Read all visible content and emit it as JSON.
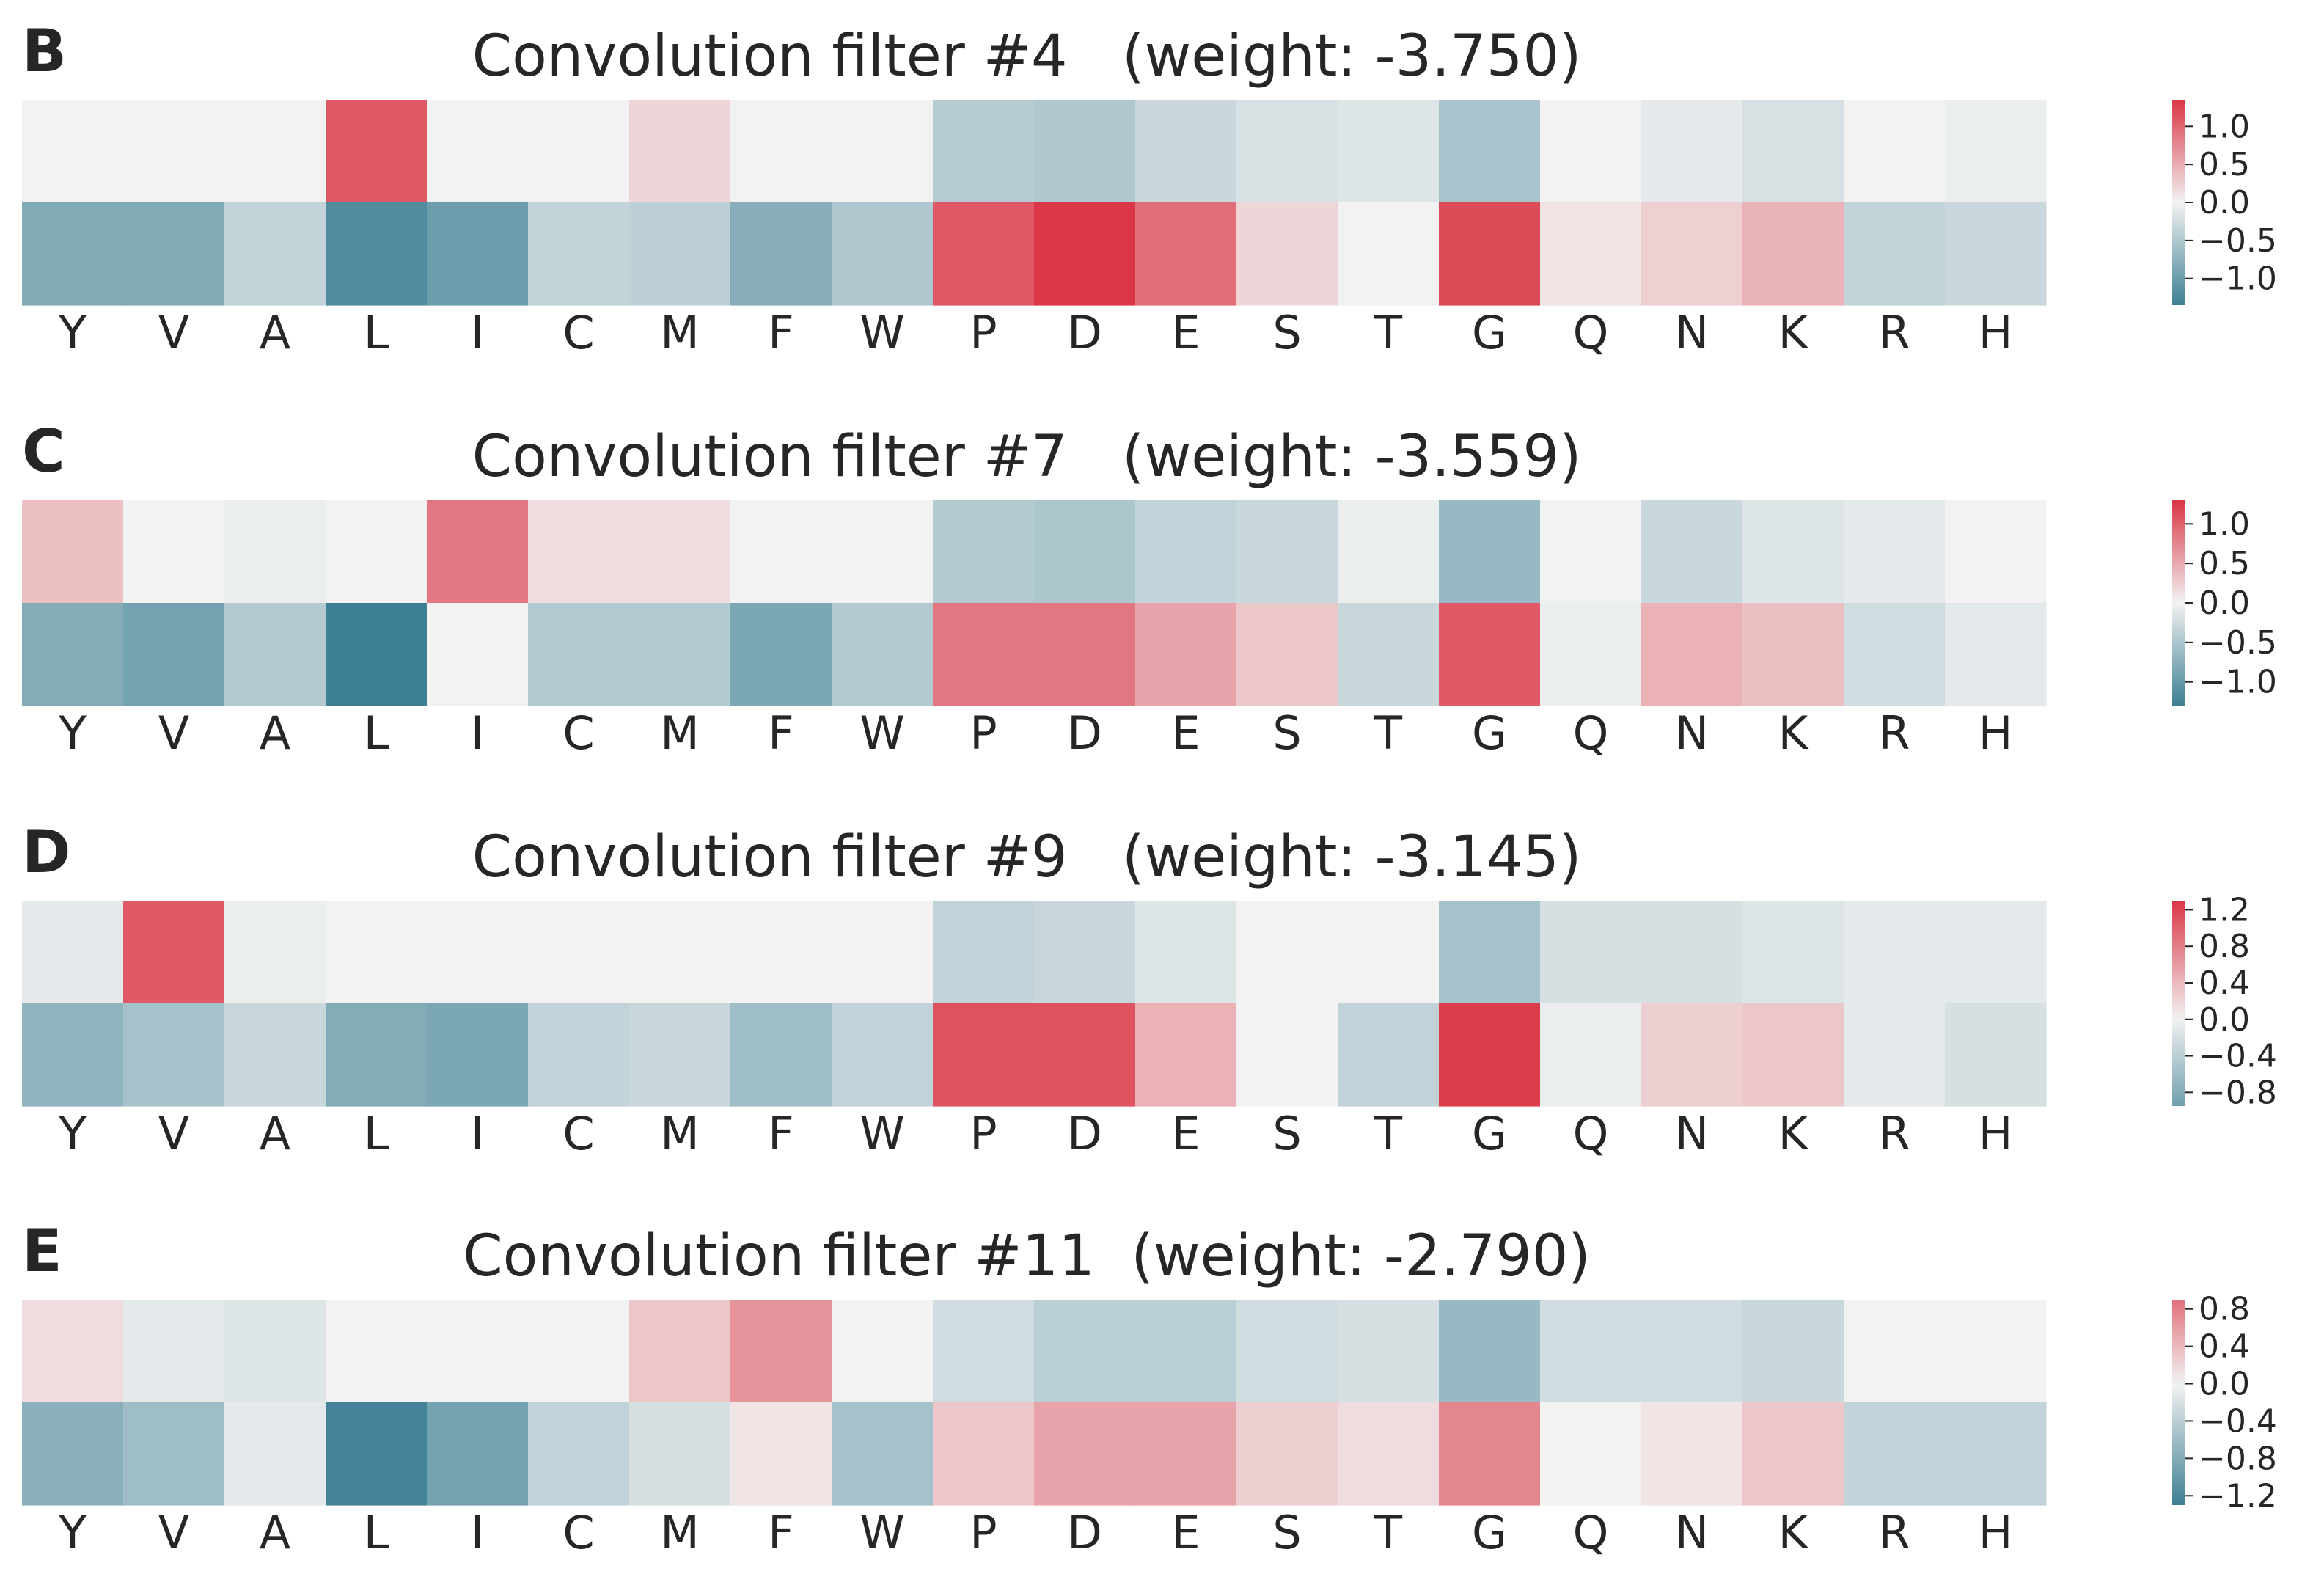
{
  "colors": {
    "negative": "#3d7f93",
    "neutral": "#f2f2f2",
    "positive": "#da3645",
    "text": "#262626"
  },
  "chart_data": [
    {
      "type": "heatmap",
      "panel": "B",
      "title": "Convolution filter #4   (weight: -3.750)",
      "x": [
        "Y",
        "V",
        "A",
        "L",
        "I",
        "C",
        "M",
        "F",
        "W",
        "P",
        "D",
        "E",
        "S",
        "T",
        "G",
        "Q",
        "N",
        "K",
        "R",
        "H"
      ],
      "rows": [
        [
          0.0,
          0.0,
          0.0,
          1.1,
          0.0,
          0.0,
          0.2,
          0.0,
          0.0,
          -0.45,
          -0.5,
          -0.3,
          -0.2,
          -0.15,
          -0.55,
          0.0,
          -0.1,
          -0.2,
          0.0,
          -0.05
        ],
        [
          -0.85,
          -0.85,
          -0.35,
          -1.2,
          -1.0,
          -0.35,
          -0.4,
          -0.8,
          -0.5,
          1.1,
          1.35,
          0.95,
          0.2,
          0.0,
          1.2,
          0.1,
          0.25,
          0.45,
          -0.35,
          -0.3
        ]
      ],
      "colorbar": {
        "min": -1.35,
        "max": 1.35,
        "ticks": [
          1.0,
          0.5,
          0.0,
          -0.5,
          -1.0
        ],
        "tick_labels": [
          "1.0",
          "0.5",
          "0.0",
          "−0.5",
          "−1.0"
        ]
      }
    },
    {
      "type": "heatmap",
      "panel": "C",
      "title": "Convolution filter #7   (weight: -3.559)",
      "x": [
        "Y",
        "V",
        "A",
        "L",
        "I",
        "C",
        "M",
        "F",
        "W",
        "P",
        "D",
        "E",
        "S",
        "T",
        "G",
        "Q",
        "N",
        "K",
        "R",
        "H"
      ],
      "rows": [
        [
          0.35,
          0.0,
          -0.05,
          0.0,
          0.85,
          0.15,
          0.15,
          0.0,
          0.0,
          -0.45,
          -0.5,
          -0.35,
          -0.3,
          -0.05,
          -0.65,
          0.0,
          -0.3,
          -0.15,
          -0.1,
          0.0
        ],
        [
          -0.8,
          -0.9,
          -0.45,
          -1.3,
          0.0,
          -0.45,
          -0.45,
          -0.85,
          -0.45,
          0.85,
          0.85,
          0.55,
          0.3,
          -0.3,
          1.05,
          -0.05,
          0.45,
          0.35,
          -0.25,
          -0.1
        ]
      ],
      "colorbar": {
        "min": -1.3,
        "max": 1.3,
        "ticks": [
          1.0,
          0.5,
          0.0,
          -0.5,
          -1.0
        ],
        "tick_labels": [
          "1.0",
          "0.5",
          "0.0",
          "−0.5",
          "−1.0"
        ]
      }
    },
    {
      "type": "heatmap",
      "panel": "D",
      "title": "Convolution filter #9   (weight: -3.145)",
      "x": [
        "Y",
        "V",
        "A",
        "L",
        "I",
        "C",
        "M",
        "F",
        "W",
        "P",
        "D",
        "E",
        "S",
        "T",
        "G",
        "Q",
        "N",
        "K",
        "R",
        "H"
      ],
      "rows": [
        [
          -0.1,
          1.05,
          -0.05,
          0.0,
          0.0,
          0.0,
          0.0,
          0.0,
          0.0,
          -0.35,
          -0.3,
          -0.15,
          0.0,
          0.0,
          -0.55,
          -0.2,
          -0.2,
          -0.15,
          -0.1,
          -0.1
        ],
        [
          -0.7,
          -0.55,
          -0.3,
          -0.8,
          -0.85,
          -0.35,
          -0.3,
          -0.6,
          -0.35,
          1.1,
          1.1,
          0.45,
          0.0,
          -0.35,
          1.25,
          -0.05,
          0.25,
          0.3,
          -0.1,
          -0.2
        ]
      ],
      "colorbar": {
        "min": -0.95,
        "max": 1.3,
        "ticks": [
          1.2,
          0.8,
          0.4,
          0.0,
          -0.4,
          -0.8
        ],
        "tick_labels": [
          "1.2",
          "0.8",
          "0.4",
          "0.0",
          "−0.4",
          "−0.8"
        ]
      }
    },
    {
      "type": "heatmap",
      "panel": "E",
      "title": "Convolution filter #11  (weight: -2.790)",
      "x": [
        "Y",
        "V",
        "A",
        "L",
        "I",
        "C",
        "M",
        "F",
        "W",
        "P",
        "D",
        "E",
        "S",
        "T",
        "G",
        "Q",
        "N",
        "K",
        "R",
        "H"
      ],
      "rows": [
        [
          0.15,
          -0.1,
          -0.15,
          0.0,
          0.0,
          0.0,
          0.3,
          0.65,
          0.0,
          -0.25,
          -0.4,
          -0.4,
          -0.25,
          -0.2,
          -0.65,
          -0.25,
          -0.25,
          -0.3,
          0.0,
          0.0
        ],
        [
          -0.75,
          -0.6,
          -0.1,
          -1.25,
          -0.9,
          -0.35,
          -0.2,
          0.1,
          -0.55,
          0.3,
          0.55,
          0.55,
          0.25,
          0.15,
          0.75,
          0.0,
          0.1,
          0.3,
          -0.35,
          -0.35
        ]
      ],
      "colorbar": {
        "min": -1.3,
        "max": 0.9,
        "ticks": [
          0.8,
          0.4,
          0.0,
          -0.4,
          -0.8,
          -1.2
        ],
        "tick_labels": [
          "0.8",
          "0.4",
          "0.0",
          "−0.4",
          "−0.8",
          "−1.2"
        ]
      }
    }
  ]
}
